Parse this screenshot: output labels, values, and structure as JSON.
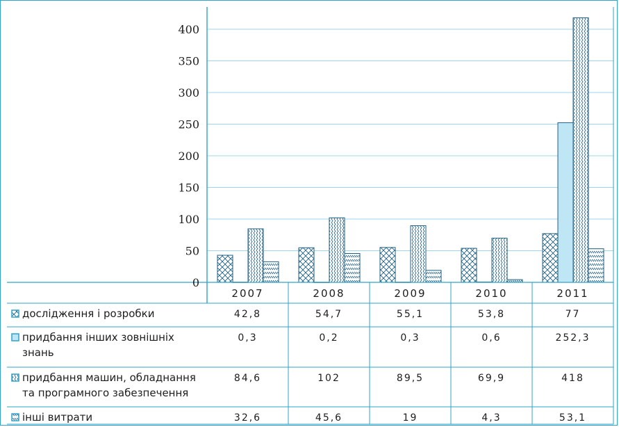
{
  "chart_data": {
    "type": "bar",
    "categories": [
      "2007",
      "2008",
      "2009",
      "2010",
      "2011"
    ],
    "yticks": [
      "0",
      "50",
      "100",
      "150",
      "200",
      "250",
      "300",
      "350",
      "400"
    ],
    "ylim": [
      0,
      425
    ],
    "grid": true,
    "series": [
      {
        "name": "дослідження і розробки",
        "values": [
          42.8,
          54.7,
          55.1,
          53.8,
          77
        ],
        "labels": [
          "42,8",
          "54,7",
          "55,1",
          "53,8",
          "77"
        ],
        "pattern": "crosshatch"
      },
      {
        "name": "придбання інших зовнішніх знань",
        "name_lines": [
          "придбання інших зовнішніх",
          "знань"
        ],
        "values": [
          0.3,
          0.2,
          0.3,
          0.6,
          252.3
        ],
        "labels": [
          "0,3",
          "0,2",
          "0,3",
          "0,6",
          "252,3"
        ],
        "pattern": "solid"
      },
      {
        "name": "придбання машин, обладнання та програмного забезпечення",
        "name_lines": [
          "придбання машин, обладнання",
          "та програмного забезпечення"
        ],
        "values": [
          84.6,
          102,
          89.5,
          69.9,
          418
        ],
        "labels": [
          "84,6",
          "102",
          "89,5",
          "69,9",
          "418"
        ],
        "pattern": "zigzag"
      },
      {
        "name": "інші витрати",
        "values": [
          32.6,
          45.6,
          19,
          4.3,
          53.1
        ],
        "labels": [
          "32,6",
          "45,6",
          "19",
          "4,3",
          "53,1"
        ],
        "pattern": "hatch"
      }
    ]
  },
  "colors": {
    "frame": "#2fa3c9",
    "grid": "#7cc9e4",
    "bar_stroke": "#1f5f80",
    "bar_fill": "#bfe6f4",
    "text": "#1d1d1d"
  }
}
